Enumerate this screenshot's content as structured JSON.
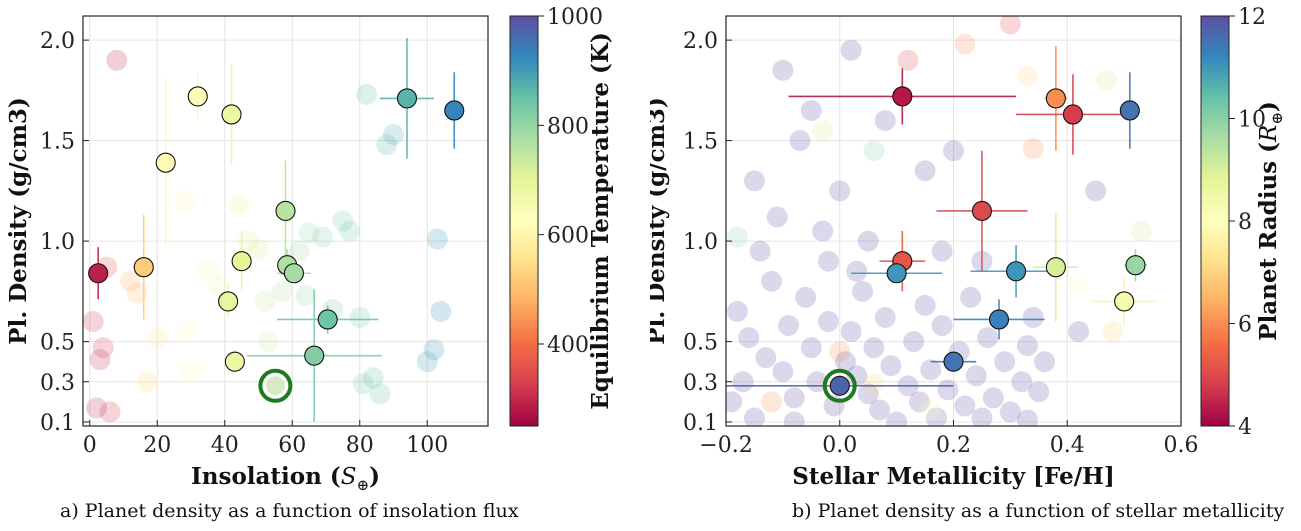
{
  "chart_data": [
    {
      "type": "scatter",
      "caption": "a) Planet density as a function of insolation flux",
      "xlabel": "Insolation (",
      "xlabel_symbol": "S",
      "xlabel_sub": "⊕",
      "xlabel_close": ")",
      "ylabel": "Pl. Density (g/cm3)",
      "xlim": [
        -2,
        118
      ],
      "ylim": [
        0.08,
        2.12
      ],
      "xticks": [
        0,
        20,
        40,
        60,
        80,
        100
      ],
      "yticks": [
        0.1,
        0.3,
        0.5,
        1.0,
        1.5,
        2.0
      ],
      "ytick_labels": [
        "0.1",
        "0.3",
        "0.5",
        "1.0",
        "1.5",
        "2.0"
      ],
      "grid": true,
      "colorbar": {
        "label": "Equilibrium Temperature (K)",
        "range": [
          250,
          1000
        ],
        "ticks": [
          400,
          600,
          800,
          1000
        ],
        "colormap": "Spectral"
      },
      "highlight": {
        "x": 55,
        "y": 0.28,
        "color": "#1f7a1f"
      },
      "points": [
        {
          "x": 2.5,
          "y": 0.84,
          "xerr": 0,
          "yerr": 0.13,
          "teq": 290
        },
        {
          "x": 16,
          "y": 0.87,
          "xerr": 0,
          "yerr": 0.26,
          "teq": 520
        },
        {
          "x": 22.5,
          "y": 1.39,
          "xerr": 0,
          "yerr": 0.42,
          "teq": 610
        },
        {
          "x": 32,
          "y": 1.72,
          "xerr": 0,
          "yerr": 0.12,
          "teq": 640
        },
        {
          "x": 42,
          "y": 1.63,
          "xerr": 0,
          "yerr": 0.25,
          "teq": 680
        },
        {
          "x": 41,
          "y": 0.7,
          "xerr": 2,
          "yerr": 0.08,
          "teq": 690
        },
        {
          "x": 45,
          "y": 0.9,
          "xerr": 0,
          "yerr": 0.15,
          "teq": 700
        },
        {
          "x": 43,
          "y": 0.4,
          "xerr": 0,
          "yerr": 0.06,
          "teq": 680
        },
        {
          "x": 58,
          "y": 1.15,
          "xerr": 0,
          "yerr": 0.25,
          "teq": 760
        },
        {
          "x": 58.5,
          "y": 0.88,
          "xerr": 0,
          "yerr": 0.08,
          "teq": 770
        },
        {
          "x": 60.5,
          "y": 0.84,
          "xerr": 5,
          "yerr": 0,
          "teq": 780
        },
        {
          "x": 70.5,
          "y": 0.61,
          "xerr": 15,
          "yerr": 0.07,
          "teq": 840
        },
        {
          "x": 66.5,
          "y": 0.43,
          "xerr": 20,
          "yerr": 0.33,
          "teq": 820
        },
        {
          "x": 94,
          "y": 1.71,
          "xerr": 8,
          "yerr": 0.3,
          "teq": 870
        },
        {
          "x": 108,
          "y": 1.65,
          "xerr": 0,
          "yerr": 0.19,
          "teq": 930
        }
      ],
      "background": [
        {
          "x": 8,
          "y": 1.9,
          "teq": 300
        },
        {
          "x": 1,
          "y": 0.6,
          "teq": 320
        },
        {
          "x": 3,
          "y": 0.41,
          "teq": 310
        },
        {
          "x": 4,
          "y": 0.47,
          "teq": 330
        },
        {
          "x": 2,
          "y": 0.17,
          "teq": 300
        },
        {
          "x": 6,
          "y": 0.15,
          "teq": 320
        },
        {
          "x": 5,
          "y": 0.87,
          "teq": 350
        },
        {
          "x": 12,
          "y": 0.8,
          "teq": 480
        },
        {
          "x": 14,
          "y": 0.74,
          "teq": 500
        },
        {
          "x": 17,
          "y": 0.3,
          "teq": 540
        },
        {
          "x": 29,
          "y": 0.55,
          "teq": 610
        },
        {
          "x": 30,
          "y": 0.35,
          "teq": 620
        },
        {
          "x": 28,
          "y": 1.2,
          "teq": 600
        },
        {
          "x": 44,
          "y": 1.18,
          "teq": 700
        },
        {
          "x": 47,
          "y": 1.0,
          "teq": 710
        },
        {
          "x": 53,
          "y": 0.5,
          "teq": 730
        },
        {
          "x": 52,
          "y": 0.7,
          "teq": 740
        },
        {
          "x": 57,
          "y": 0.75,
          "teq": 760
        },
        {
          "x": 62,
          "y": 0.95,
          "teq": 790
        },
        {
          "x": 64,
          "y": 0.73,
          "teq": 800
        },
        {
          "x": 72,
          "y": 0.66,
          "teq": 820
        },
        {
          "x": 75,
          "y": 1.1,
          "teq": 830
        },
        {
          "x": 77,
          "y": 1.05,
          "teq": 830
        },
        {
          "x": 80,
          "y": 0.62,
          "teq": 840
        },
        {
          "x": 81,
          "y": 0.29,
          "teq": 840
        },
        {
          "x": 84,
          "y": 0.32,
          "teq": 850
        },
        {
          "x": 86,
          "y": 0.24,
          "teq": 850
        },
        {
          "x": 82,
          "y": 1.73,
          "teq": 860
        },
        {
          "x": 88,
          "y": 1.48,
          "teq": 870
        },
        {
          "x": 90,
          "y": 1.53,
          "teq": 880
        },
        {
          "x": 100,
          "y": 0.4,
          "teq": 900
        },
        {
          "x": 102,
          "y": 0.46,
          "teq": 910
        },
        {
          "x": 103,
          "y": 1.01,
          "teq": 910
        },
        {
          "x": 104,
          "y": 0.65,
          "teq": 920
        },
        {
          "x": 69,
          "y": 1.02,
          "teq": 810
        },
        {
          "x": 65,
          "y": 1.04,
          "teq": 800
        },
        {
          "x": 50,
          "y": 0.96,
          "teq": 720
        },
        {
          "x": 38,
          "y": 0.78,
          "teq": 670
        },
        {
          "x": 35,
          "y": 0.85,
          "teq": 660
        },
        {
          "x": 20,
          "y": 0.52,
          "teq": 560
        }
      ]
    },
    {
      "type": "scatter",
      "caption": "b) Planet density as a function of stellar metallicity",
      "xlabel": "Stellar Metallicity [Fe/H]",
      "ylabel": "Pl. Density (g/cm3)",
      "xlim": [
        -0.2,
        0.6
      ],
      "ylim": [
        0.08,
        2.12
      ],
      "xticks": [
        -0.2,
        0,
        0.2,
        0.4,
        0.6
      ],
      "xtick_labels": [
        "−0.2",
        "0.0",
        "0.2",
        "0.4",
        "0.6"
      ],
      "yticks": [
        0.1,
        0.3,
        0.5,
        1.0,
        1.5,
        2.0
      ],
      "ytick_labels": [
        "0.1",
        "0.3",
        "0.5",
        "1.0",
        "1.5",
        "2.0"
      ],
      "grid": true,
      "colorbar": {
        "label": "Planet Radius (",
        "label_symbol": "R",
        "label_sub": "⊕",
        "label_close": ")",
        "range": [
          4,
          12
        ],
        "ticks": [
          4,
          6,
          8,
          10,
          12
        ],
        "colormap": "Spectral"
      },
      "highlight": {
        "x": 0.0,
        "y": 0.28,
        "color": "#1f7a1f"
      },
      "points": [
        {
          "x": 0.0,
          "y": 0.28,
          "xerr": 0.2,
          "yerr": 0,
          "r": 11.7
        },
        {
          "x": 0.11,
          "y": 1.72,
          "xerr": 0.2,
          "yerr": 0.14,
          "r": 4.3
        },
        {
          "x": 0.38,
          "y": 1.71,
          "xerr": 0.02,
          "yerr": 0.26,
          "r": 6.0
        },
        {
          "x": 0.41,
          "y": 1.63,
          "xerr": 0.1,
          "yerr": 0.2,
          "r": 4.8
        },
        {
          "x": 0.51,
          "y": 1.65,
          "xerr": 0,
          "yerr": 0.19,
          "r": 11.5
        },
        {
          "x": 0.25,
          "y": 1.15,
          "xerr": 0.08,
          "yerr": 0.3,
          "r": 5.0
        },
        {
          "x": 0.11,
          "y": 0.9,
          "xerr": 0.04,
          "yerr": 0.15,
          "r": 5.2
        },
        {
          "x": 0.1,
          "y": 0.84,
          "xerr": 0.08,
          "yerr": 0,
          "r": 11.0
        },
        {
          "x": 0.31,
          "y": 0.85,
          "xerr": 0.08,
          "yerr": 0.13,
          "r": 11.0
        },
        {
          "x": 0.38,
          "y": 0.87,
          "xerr": 0.04,
          "yerr": 0.27,
          "r": 9.0
        },
        {
          "x": 0.52,
          "y": 0.88,
          "xerr": 0.02,
          "yerr": 0.08,
          "r": 9.8
        },
        {
          "x": 0.5,
          "y": 0.7,
          "xerr": 0.06,
          "yerr": 0.12,
          "r": 8.4
        },
        {
          "x": 0.28,
          "y": 0.61,
          "xerr": 0.08,
          "yerr": 0.1,
          "r": 11.3
        },
        {
          "x": 0.2,
          "y": 0.4,
          "xerr": 0.04,
          "yerr": 0.05,
          "r": 11.5
        }
      ],
      "background": [
        {
          "x": -0.19,
          "y": 0.2,
          "r": 12
        },
        {
          "x": -0.17,
          "y": 0.3,
          "r": 12
        },
        {
          "x": -0.16,
          "y": 0.52,
          "r": 12
        },
        {
          "x": -0.18,
          "y": 0.65,
          "r": 12
        },
        {
          "x": -0.15,
          "y": 0.12,
          "r": 12
        },
        {
          "x": -0.13,
          "y": 0.42,
          "r": 12
        },
        {
          "x": -0.12,
          "y": 0.8,
          "r": 12
        },
        {
          "x": -0.14,
          "y": 0.95,
          "r": 12
        },
        {
          "x": -0.11,
          "y": 1.12,
          "r": 12
        },
        {
          "x": -0.1,
          "y": 0.35,
          "r": 12
        },
        {
          "x": -0.09,
          "y": 0.58,
          "r": 12
        },
        {
          "x": -0.08,
          "y": 0.22,
          "r": 12
        },
        {
          "x": -0.07,
          "y": 1.5,
          "r": 12
        },
        {
          "x": -0.06,
          "y": 0.72,
          "r": 12
        },
        {
          "x": -0.05,
          "y": 0.47,
          "r": 12
        },
        {
          "x": -0.04,
          "y": 0.3,
          "r": 12
        },
        {
          "x": -0.03,
          "y": 1.05,
          "r": 12
        },
        {
          "x": -0.02,
          "y": 0.6,
          "r": 12
        },
        {
          "x": -0.01,
          "y": 0.18,
          "r": 12
        },
        {
          "x": 0.0,
          "y": 1.25,
          "r": 12
        },
        {
          "x": 0.01,
          "y": 0.4,
          "r": 12
        },
        {
          "x": 0.02,
          "y": 0.55,
          "r": 12
        },
        {
          "x": 0.03,
          "y": 0.33,
          "r": 12
        },
        {
          "x": 0.04,
          "y": 0.75,
          "r": 12
        },
        {
          "x": 0.05,
          "y": 0.24,
          "r": 12
        },
        {
          "x": 0.06,
          "y": 0.47,
          "r": 12
        },
        {
          "x": 0.07,
          "y": 0.16,
          "r": 12
        },
        {
          "x": 0.08,
          "y": 0.62,
          "r": 12
        },
        {
          "x": 0.09,
          "y": 0.38,
          "r": 12
        },
        {
          "x": 0.12,
          "y": 0.28,
          "r": 12
        },
        {
          "x": 0.13,
          "y": 0.5,
          "r": 12
        },
        {
          "x": 0.14,
          "y": 0.2,
          "r": 12
        },
        {
          "x": 0.15,
          "y": 0.68,
          "r": 12
        },
        {
          "x": 0.16,
          "y": 0.36,
          "r": 12
        },
        {
          "x": 0.17,
          "y": 0.12,
          "r": 12
        },
        {
          "x": 0.18,
          "y": 0.58,
          "r": 12
        },
        {
          "x": 0.19,
          "y": 0.26,
          "r": 12
        },
        {
          "x": 0.21,
          "y": 0.45,
          "r": 12
        },
        {
          "x": 0.22,
          "y": 0.18,
          "r": 12
        },
        {
          "x": 0.23,
          "y": 0.72,
          "r": 12
        },
        {
          "x": 0.24,
          "y": 0.33,
          "r": 12
        },
        {
          "x": 0.26,
          "y": 0.52,
          "r": 12
        },
        {
          "x": 0.27,
          "y": 0.22,
          "r": 12
        },
        {
          "x": 0.29,
          "y": 0.4,
          "r": 12
        },
        {
          "x": 0.3,
          "y": 0.15,
          "r": 12
        },
        {
          "x": 0.32,
          "y": 0.3,
          "r": 12
        },
        {
          "x": 0.33,
          "y": 0.48,
          "r": 12
        },
        {
          "x": 0.34,
          "y": 0.62,
          "r": 12
        },
        {
          "x": 0.35,
          "y": 0.25,
          "r": 12
        },
        {
          "x": 0.36,
          "y": 0.4,
          "r": 12
        },
        {
          "x": 0.02,
          "y": 1.95,
          "r": 12
        },
        {
          "x": -0.1,
          "y": 1.85,
          "r": 12
        },
        {
          "x": 0.08,
          "y": 1.6,
          "r": 12
        },
        {
          "x": 0.15,
          "y": 1.35,
          "r": 12
        },
        {
          "x": 0.2,
          "y": 1.45,
          "r": 12
        },
        {
          "x": -0.05,
          "y": 1.65,
          "r": 12
        },
        {
          "x": 0.05,
          "y": 1.0,
          "r": 12
        },
        {
          "x": -0.15,
          "y": 1.3,
          "r": 12
        },
        {
          "x": 0.25,
          "y": 0.9,
          "r": 12
        },
        {
          "x": 0.18,
          "y": 0.95,
          "r": 12
        },
        {
          "x": -0.02,
          "y": 0.9,
          "r": 12
        },
        {
          "x": 0.03,
          "y": 0.85,
          "r": 12
        },
        {
          "x": 0.45,
          "y": 1.25,
          "r": 12
        },
        {
          "x": 0.42,
          "y": 0.55,
          "r": 12
        },
        {
          "x": 0.1,
          "y": 0.1,
          "r": 12
        },
        {
          "x": 0.25,
          "y": 0.12,
          "r": 12
        },
        {
          "x": -0.08,
          "y": 0.1,
          "r": 12
        },
        {
          "x": 0.33,
          "y": 0.11,
          "r": 12
        },
        {
          "x": 0.12,
          "y": 1.9,
          "r": 5
        },
        {
          "x": 0.3,
          "y": 2.08,
          "r": 5
        },
        {
          "x": 0.22,
          "y": 1.98,
          "r": 6
        },
        {
          "x": 0.34,
          "y": 1.46,
          "r": 6
        },
        {
          "x": 0.33,
          "y": 1.82,
          "r": 7
        },
        {
          "x": 0.47,
          "y": 1.8,
          "r": 9
        },
        {
          "x": 0.53,
          "y": 1.05,
          "r": 9
        },
        {
          "x": 0.42,
          "y": 0.78,
          "r": 8
        },
        {
          "x": 0.48,
          "y": 0.55,
          "r": 7
        },
        {
          "x": -0.03,
          "y": 1.55,
          "r": 9
        },
        {
          "x": 0.06,
          "y": 1.45,
          "r": 10
        },
        {
          "x": -0.18,
          "y": 1.02,
          "r": 10
        },
        {
          "x": -0.12,
          "y": 0.2,
          "r": 6
        },
        {
          "x": 0.0,
          "y": 0.45,
          "r": 6
        },
        {
          "x": 0.06,
          "y": 0.29,
          "r": 7
        },
        {
          "x": 0.16,
          "y": 0.16,
          "r": 8
        }
      ]
    }
  ]
}
